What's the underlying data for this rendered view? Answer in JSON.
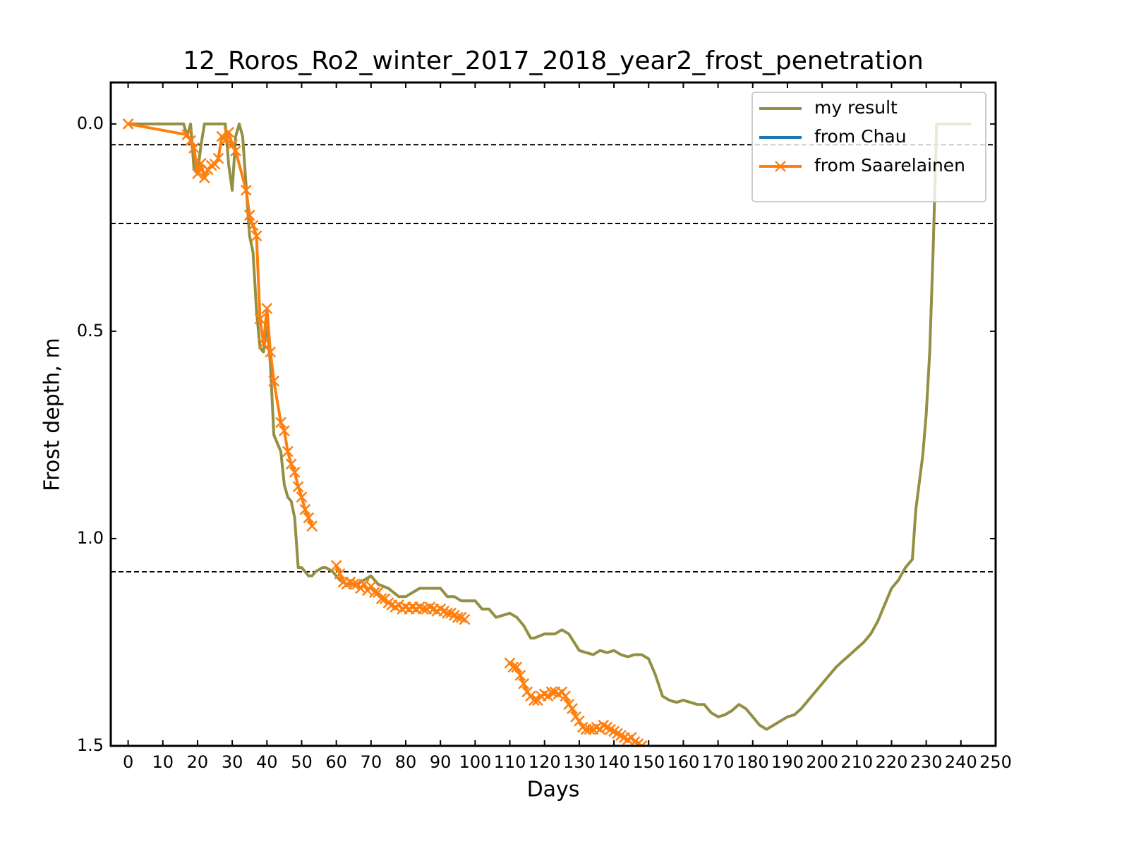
{
  "chart_data": {
    "type": "line",
    "title": "12_Roros_Ro2_winter_2017_2018_year2_frost_penetration",
    "xlabel": "Days",
    "ylabel": "Frost depth, m",
    "xlim": [
      -5,
      250
    ],
    "ylim": [
      1.5,
      -0.1
    ],
    "inverted_y": true,
    "xticks": [
      0,
      10,
      20,
      30,
      40,
      50,
      60,
      70,
      80,
      90,
      100,
      110,
      120,
      130,
      140,
      150,
      160,
      170,
      180,
      190,
      200,
      210,
      220,
      230,
      240,
      250
    ],
    "yticks": [
      {
        "value": 0,
        "label": "0.0"
      },
      0.5,
      {
        "value": 1,
        "label": "1.0"
      },
      1.5
    ],
    "hlines": [
      0.05,
      0.24,
      1.08
    ],
    "hline_style": "dashed",
    "hline_color": "#000000",
    "legend": "upper right",
    "grid": false,
    "series": [
      {
        "name": "my result",
        "color": "#938f43",
        "marker": null,
        "x": [
          0,
          16,
          17,
          18,
          19,
          20,
          21,
          22,
          28,
          29,
          30,
          31,
          32,
          33,
          34,
          35,
          36,
          37,
          38,
          39,
          40,
          41,
          42,
          43,
          44,
          45,
          46,
          47,
          48,
          49,
          50,
          51,
          52,
          53,
          54,
          56,
          57,
          59,
          61,
          63,
          66,
          68,
          70,
          72,
          75,
          78,
          80,
          82,
          84,
          86,
          88,
          90,
          91,
          92,
          94,
          96,
          100,
          102,
          104,
          106,
          110,
          112,
          114,
          116,
          117,
          120,
          123,
          125,
          127,
          130,
          132,
          134,
          136,
          138,
          140,
          142,
          144,
          146,
          148,
          150,
          152,
          154,
          156,
          158,
          160,
          162,
          164,
          166,
          168,
          170,
          172,
          174,
          176,
          178,
          180,
          182,
          184,
          186,
          188,
          190,
          192,
          194,
          196,
          198,
          200,
          202,
          204,
          206,
          208,
          210,
          212,
          214,
          216,
          218,
          220,
          222,
          224,
          226,
          227,
          229,
          230,
          231,
          232,
          233,
          243
        ],
        "values": [
          0,
          0,
          0.03,
          0,
          0.11,
          0.12,
          0.05,
          0,
          0,
          0.1,
          0.16,
          0.03,
          0,
          0.03,
          0.15,
          0.27,
          0.31,
          0.45,
          0.54,
          0.55,
          0.48,
          0.58,
          0.75,
          0.77,
          0.79,
          0.87,
          0.9,
          0.91,
          0.95,
          1.07,
          1.07,
          1.08,
          1.09,
          1.09,
          1.08,
          1.07,
          1.07,
          1.08,
          1.1,
          1.11,
          1.11,
          1.1,
          1.09,
          1.11,
          1.12,
          1.14,
          1.14,
          1.13,
          1.12,
          1.12,
          1.12,
          1.12,
          1.13,
          1.14,
          1.14,
          1.15,
          1.15,
          1.17,
          1.17,
          1.19,
          1.18,
          1.19,
          1.21,
          1.24,
          1.24,
          1.23,
          1.23,
          1.22,
          1.23,
          1.27,
          1.275,
          1.28,
          1.27,
          1.275,
          1.27,
          1.28,
          1.285,
          1.28,
          1.28,
          1.29,
          1.33,
          1.38,
          1.39,
          1.395,
          1.39,
          1.395,
          1.4,
          1.4,
          1.42,
          1.43,
          1.425,
          1.415,
          1.4,
          1.41,
          1.43,
          1.45,
          1.46,
          1.45,
          1.44,
          1.43,
          1.425,
          1.41,
          1.39,
          1.37,
          1.35,
          1.33,
          1.31,
          1.295,
          1.28,
          1.265,
          1.25,
          1.23,
          1.2,
          1.16,
          1.12,
          1.1,
          1.07,
          1.05,
          0.93,
          0.8,
          0.7,
          0.55,
          0.3,
          0,
          0
        ]
      },
      {
        "name": "from Chau",
        "color": "#1f77b4",
        "marker": null,
        "x": [],
        "values": []
      },
      {
        "name": "from Saarelainen",
        "color": "#ff7f0e",
        "marker": "x",
        "x": [
          0,
          17,
          18,
          19,
          20,
          21,
          22,
          23,
          24,
          25,
          26,
          27,
          28,
          29,
          30,
          31,
          34,
          35,
          36,
          37,
          38,
          39,
          40,
          41,
          42,
          44,
          45,
          46,
          47,
          48,
          49,
          50,
          51,
          52,
          53,
          null,
          60,
          61,
          62,
          63,
          64,
          65,
          66,
          67,
          68,
          69,
          70,
          71,
          72,
          73,
          74,
          75,
          76,
          77,
          78,
          79,
          80,
          81,
          82,
          83,
          84,
          85,
          86,
          87,
          88,
          89,
          90,
          91,
          92,
          93,
          94,
          95,
          96,
          97,
          null,
          110,
          111,
          112,
          113,
          114,
          115,
          116,
          117,
          118,
          119,
          120,
          121,
          122,
          123,
          124,
          125,
          126,
          127,
          128,
          129,
          130,
          131,
          132,
          133,
          134,
          135,
          136,
          137,
          138,
          139,
          140,
          141,
          142,
          143,
          144,
          145,
          146,
          147,
          148
        ],
        "values": [
          0,
          0.026,
          0.04,
          0.058,
          0.12,
          0.095,
          0.13,
          0.11,
          0.1,
          0.097,
          0.083,
          0.03,
          0.04,
          0.02,
          0.05,
          0.065,
          0.16,
          0.22,
          0.245,
          0.27,
          0.47,
          0.53,
          0.445,
          0.55,
          0.62,
          0.72,
          0.74,
          0.79,
          0.82,
          0.84,
          0.875,
          0.9,
          0.93,
          0.95,
          0.97,
          null,
          1.065,
          1.085,
          1.105,
          1.11,
          1.105,
          1.11,
          1.11,
          1.12,
          1.11,
          1.125,
          1.115,
          1.13,
          1.13,
          1.145,
          1.145,
          1.155,
          1.16,
          1.165,
          1.16,
          1.17,
          1.165,
          1.17,
          1.165,
          1.17,
          1.165,
          1.17,
          1.17,
          1.165,
          1.17,
          1.175,
          1.17,
          1.175,
          1.18,
          1.18,
          1.185,
          1.19,
          1.19,
          1.195,
          null,
          1.3,
          1.31,
          1.31,
          1.33,
          1.35,
          1.37,
          1.38,
          1.39,
          1.39,
          1.38,
          1.375,
          1.38,
          1.37,
          1.37,
          1.375,
          1.37,
          1.38,
          1.4,
          1.41,
          1.43,
          1.44,
          1.455,
          1.46,
          1.46,
          1.46,
          1.455,
          1.46,
          1.45,
          1.455,
          1.46,
          1.465,
          1.47,
          1.475,
          1.48,
          1.485,
          1.48,
          1.49,
          1.495,
          1.5
        ]
      }
    ]
  }
}
